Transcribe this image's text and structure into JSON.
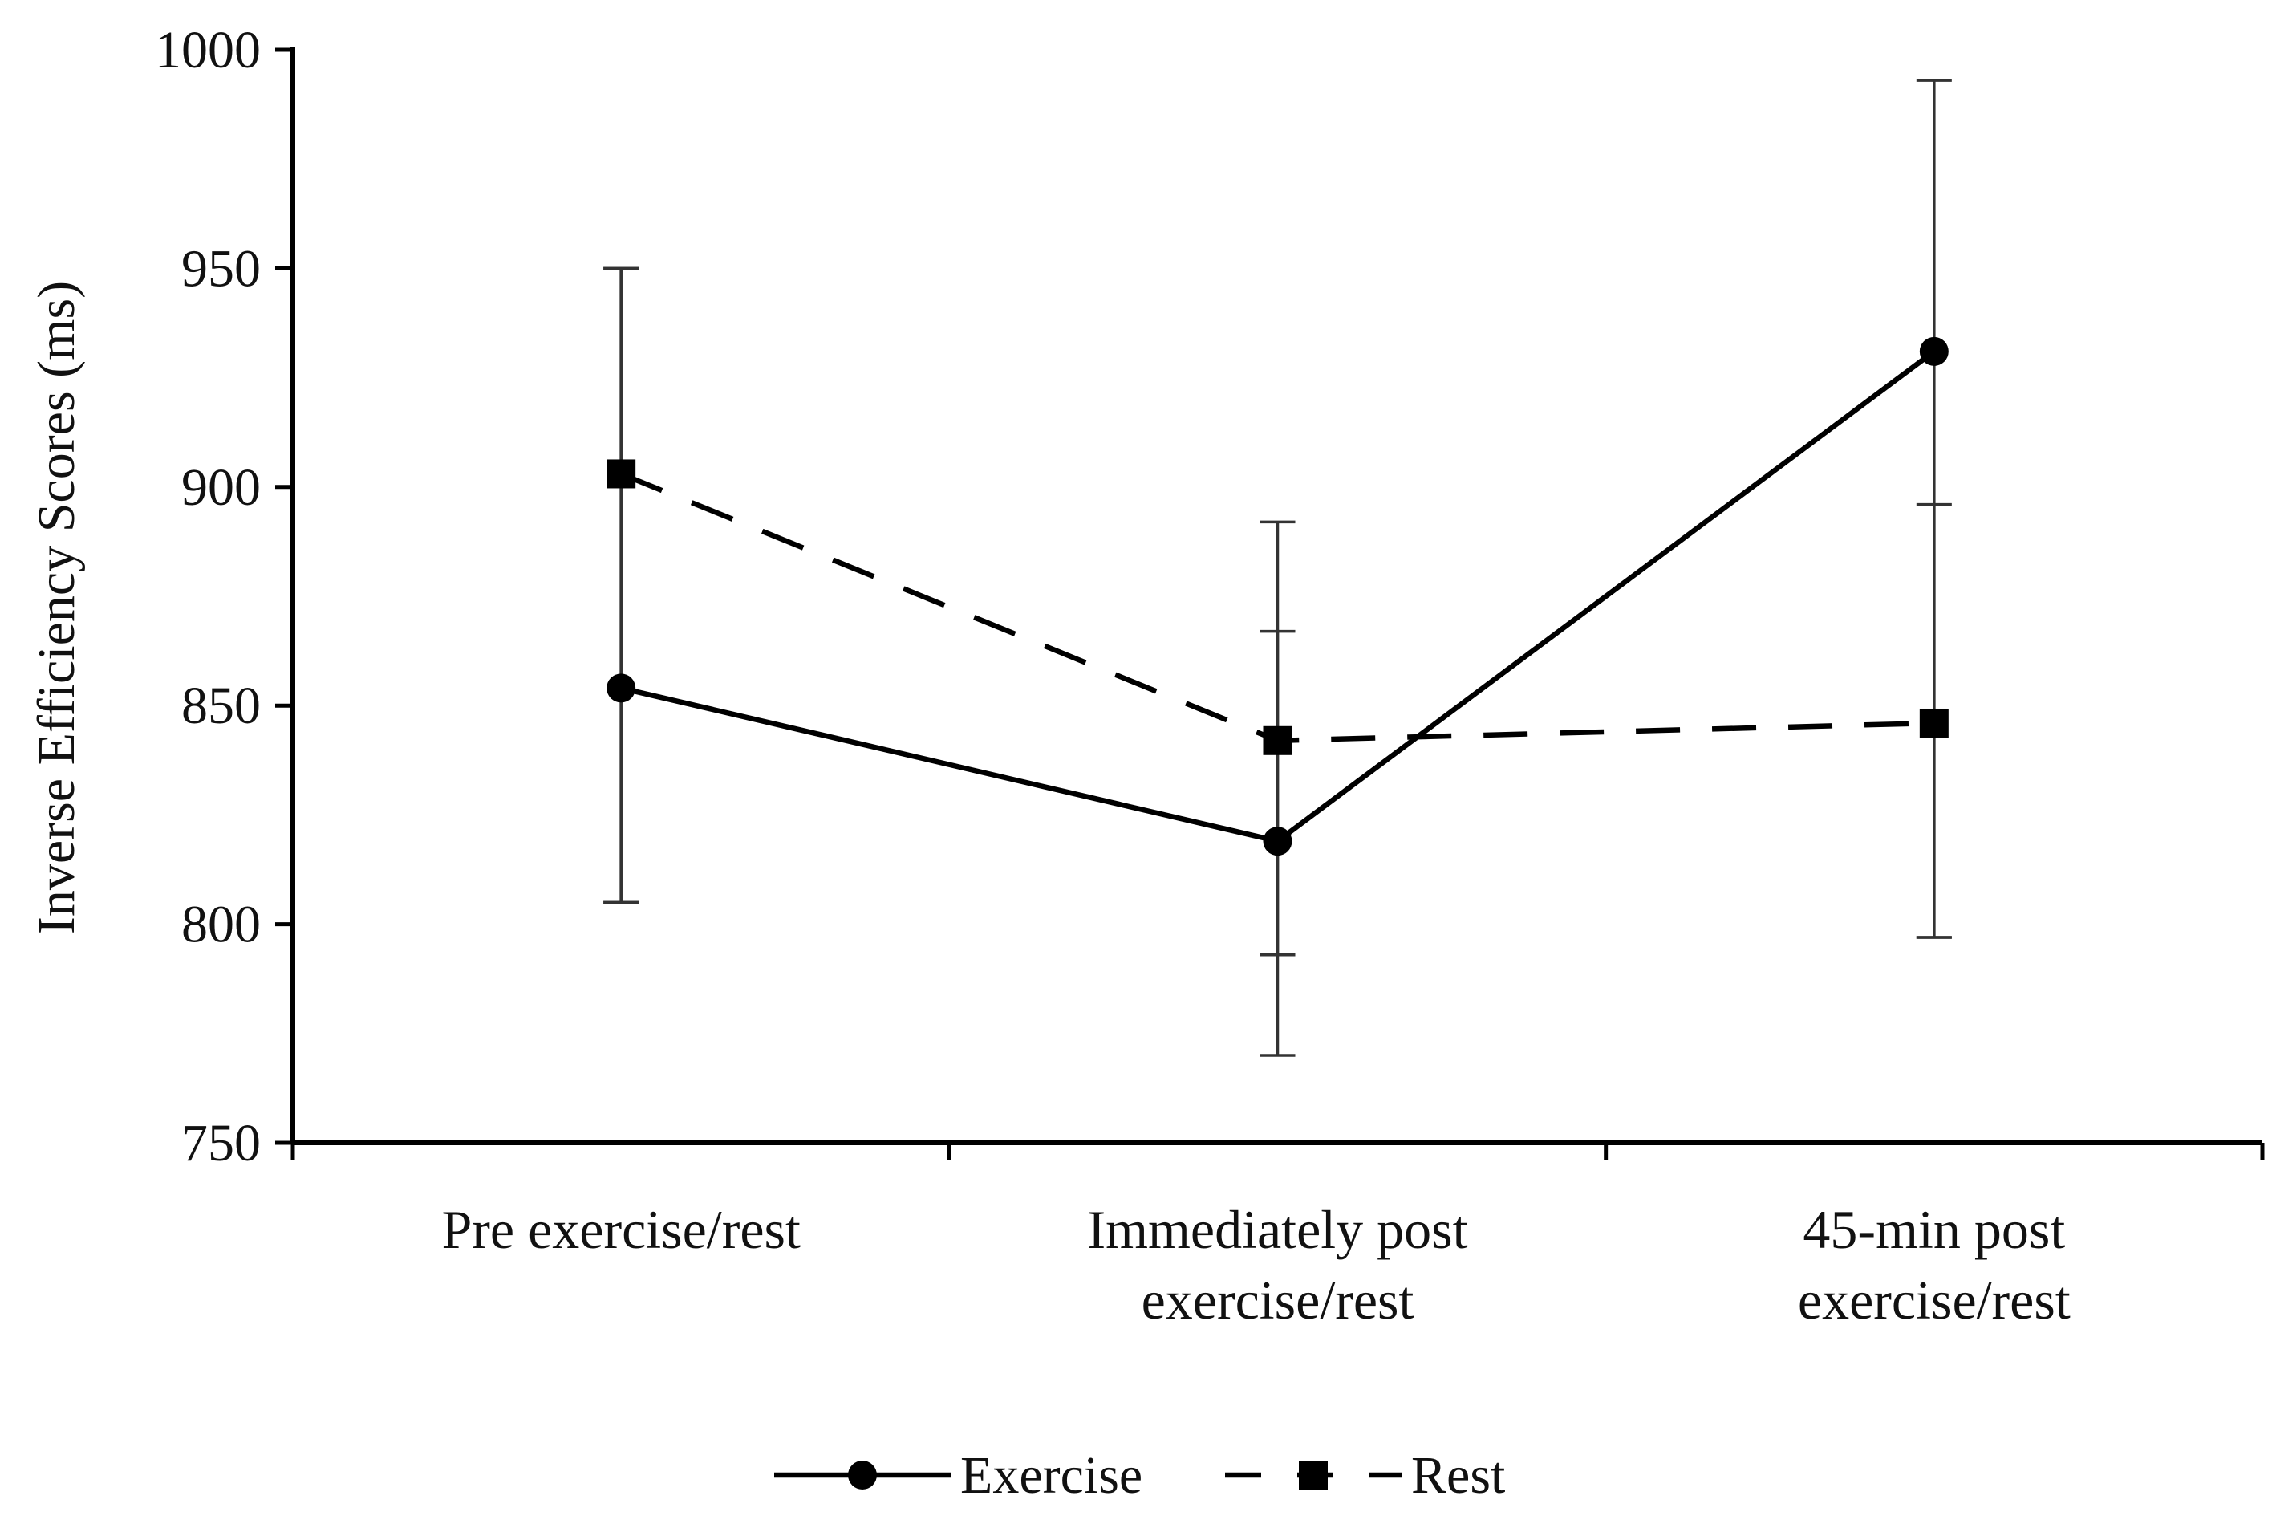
{
  "chart_data": {
    "type": "line",
    "ylabel": "Inverse Efficiency Scores (ms)",
    "xlabel": "",
    "ylim": [
      750,
      1000
    ],
    "yticks": [
      750,
      800,
      850,
      900,
      950,
      1000
    ],
    "grid": false,
    "legend_position": "bottom-center",
    "categories": [
      [
        "Pre exercise/rest"
      ],
      [
        "Immediately post",
        "exercise/rest"
      ],
      [
        "45-min post",
        "exercise/rest"
      ]
    ],
    "series": [
      {
        "name": "Exercise",
        "line_style": "solid",
        "marker": "circle",
        "values": [
          854,
          819,
          931
        ],
        "error_low": [
          805,
          793,
          797
        ],
        "error_high": [
          950,
          867,
          993
        ]
      },
      {
        "name": "Rest",
        "line_style": "dashed",
        "marker": "square",
        "values": [
          903,
          842,
          846
        ],
        "error_low": [
          805,
          770,
          797
        ],
        "error_high": [
          950,
          892,
          896
        ]
      }
    ],
    "colors": {
      "line": "#000000",
      "error_bar": "#333333"
    }
  }
}
